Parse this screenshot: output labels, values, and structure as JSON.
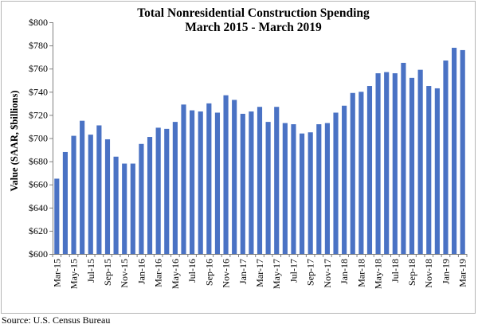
{
  "chart_data": {
    "type": "bar",
    "title": "Total Nonresidential Construction Spending",
    "subtitle": "March 2015 - March 2019",
    "xlabel": "",
    "ylabel": "Value (SAAR, $billions)",
    "ylim": [
      600,
      800
    ],
    "ytick_step": 20,
    "y_tick_labels": [
      "$600",
      "$620",
      "$640",
      "$660",
      "$680",
      "$700",
      "$720",
      "$740",
      "$760",
      "$780",
      "$800"
    ],
    "grid": false,
    "legend": "none",
    "bar_color": "#4a72c4",
    "categories": [
      "Mar-15",
      "Apr-15",
      "May-15",
      "Jun-15",
      "Jul-15",
      "Aug-15",
      "Sep-15",
      "Oct-15",
      "Nov-15",
      "Dec-15",
      "Jan-16",
      "Feb-16",
      "Mar-16",
      "Apr-16",
      "May-16",
      "Jun-16",
      "Jul-16",
      "Aug-16",
      "Sep-16",
      "Oct-16",
      "Nov-16",
      "Dec-16",
      "Jan-17",
      "Feb-17",
      "Mar-17",
      "Apr-17",
      "May-17",
      "Jun-17",
      "Jul-17",
      "Aug-17",
      "Sep-17",
      "Oct-17",
      "Nov-17",
      "Dec-17",
      "Jan-18",
      "Feb-18",
      "Mar-18",
      "Apr-18",
      "May-18",
      "Jun-18",
      "Jul-18",
      "Aug-18",
      "Sep-18",
      "Oct-18",
      "Nov-18",
      "Dec-18",
      "Jan-19",
      "Feb-19",
      "Mar-19"
    ],
    "x_tick_labels": [
      "Mar-15",
      "",
      "May-15",
      "",
      "Jul-15",
      "",
      "Sep-15",
      "",
      "Nov-15",
      "",
      "Jan-16",
      "",
      "Mar-16",
      "",
      "May-16",
      "",
      "Jul-16",
      "",
      "Sep-16",
      "",
      "Nov-16",
      "",
      "Jan-17",
      "",
      "Mar-17",
      "",
      "May-17",
      "",
      "Jul-17",
      "",
      "Sep-17",
      "",
      "Nov-17",
      "",
      "Jan-18",
      "",
      "Mar-18",
      "",
      "May-18",
      "",
      "Jul-18",
      "",
      "Sep-18",
      "",
      "Nov-18",
      "",
      "Jan-19",
      "",
      "Mar-19"
    ],
    "values": [
      665,
      688,
      702,
      715,
      703,
      711,
      699,
      684,
      678,
      678,
      695,
      701,
      709,
      708,
      714,
      729,
      724,
      723,
      730,
      722,
      737,
      733,
      721,
      723,
      727,
      714,
      727,
      713,
      712,
      704,
      705,
      712,
      713,
      722,
      728,
      739,
      740,
      745,
      756,
      757,
      756,
      765,
      752,
      759,
      745,
      743,
      767,
      778,
      776
    ]
  },
  "source": "Source:  U.S. Census Bureau"
}
